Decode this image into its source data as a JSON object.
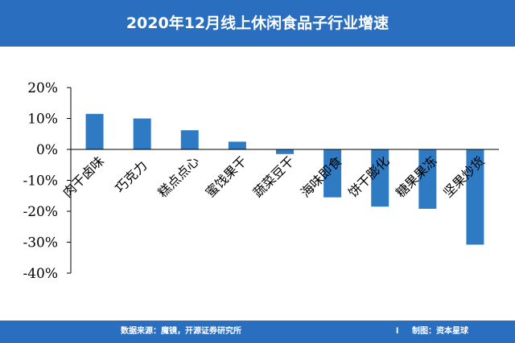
{
  "header": {
    "title": "2020年12月线上休闲食品子行业增速"
  },
  "footer": {
    "source": "数据来源：魔镜，开源证券研究所",
    "separator": "l",
    "maker": "制图：资本星球"
  },
  "colors": {
    "header_bg": "#2a6ebf",
    "bar": "#2e7bc4",
    "axis": "#000000"
  },
  "chart_data": {
    "type": "bar",
    "title": "2020年12月线上休闲食品子行业增速",
    "categories": [
      "肉干卤味",
      "巧克力",
      "糕点点心",
      "蜜饯果干",
      "蔬菜豆干",
      "海味即食",
      "饼干膨化",
      "糖果果冻",
      "坚果炒货"
    ],
    "values": [
      11.5,
      10.0,
      6.2,
      2.5,
      -1.5,
      -15.5,
      -18.5,
      -19.2,
      -30.8
    ],
    "ylim": [
      -40,
      20
    ],
    "yticks": [
      20,
      10,
      0,
      -10,
      -20,
      -30,
      -40
    ],
    "ytick_labels": [
      "20%",
      "10%",
      "0%",
      "-10%",
      "-20%",
      "-30%",
      "-40%"
    ],
    "xlabel": "",
    "ylabel": "",
    "grid": false,
    "legend": "none"
  }
}
